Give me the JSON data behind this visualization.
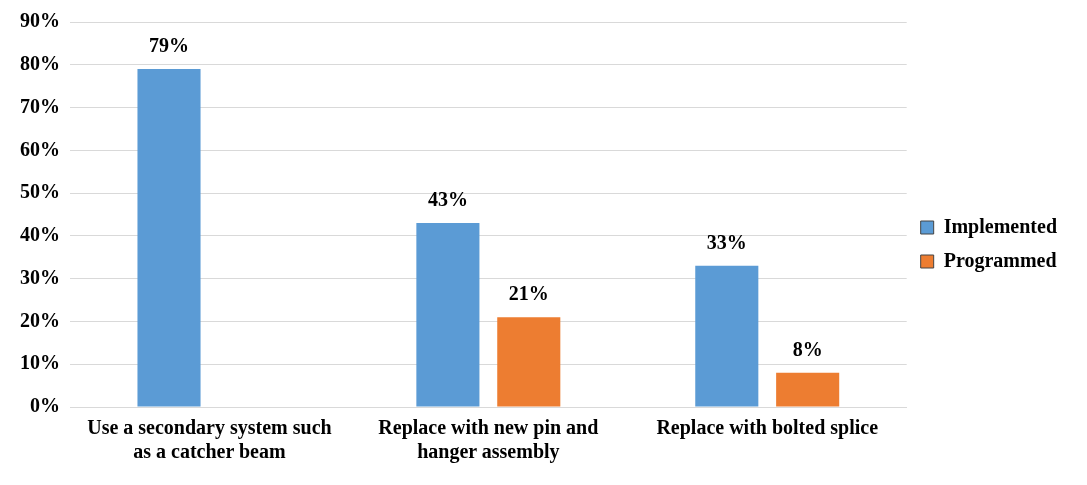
{
  "chart_data": {
    "type": "bar",
    "categories": [
      "Use a secondary system such as a catcher beam",
      "Replace with new pin and hanger assembly",
      "Replace with bolted splice"
    ],
    "series": [
      {
        "name": "Implemented",
        "color": "#5b9bd5",
        "values": [
          79,
          43,
          33
        ],
        "value_labels": [
          "79%",
          "43%",
          "33%"
        ]
      },
      {
        "name": "Programmed",
        "color": "#ed7d31",
        "values": [
          null,
          21,
          8
        ],
        "value_labels": [
          null,
          "21%",
          "8%"
        ]
      }
    ],
    "ylim": [
      0,
      90
    ],
    "yticks": [
      {
        "value": 0,
        "label": "0%"
      },
      {
        "value": 10,
        "label": "10%"
      },
      {
        "value": 20,
        "label": "20%"
      },
      {
        "value": 30,
        "label": "30%"
      },
      {
        "value": 40,
        "label": "40%"
      },
      {
        "value": 50,
        "label": "50%"
      },
      {
        "value": 60,
        "label": "60%"
      },
      {
        "value": 70,
        "label": "70%"
      },
      {
        "value": 80,
        "label": "80%"
      },
      {
        "value": 90,
        "label": "90%"
      }
    ],
    "grid": "y",
    "legend": "right"
  }
}
